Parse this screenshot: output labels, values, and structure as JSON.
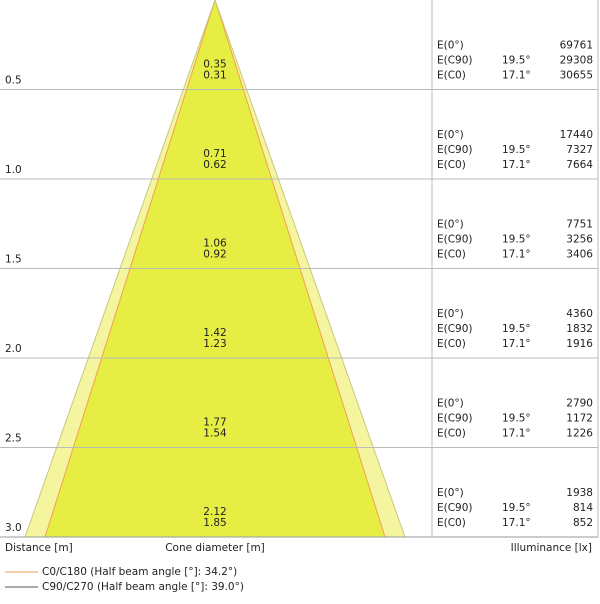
{
  "rows": [
    {
      "distance": "0.5",
      "diameters": [
        "0.35",
        "0.31"
      ],
      "illuminance": [
        [
          "E(0°)",
          "",
          "69761"
        ],
        [
          "E(C90)",
          "19.5°",
          "29308"
        ],
        [
          "E(C0)",
          "17.1°",
          "30655"
        ]
      ]
    },
    {
      "distance": "1.0",
      "diameters": [
        "0.71",
        "0.62"
      ],
      "illuminance": [
        [
          "E(0°)",
          "",
          "17440"
        ],
        [
          "E(C90)",
          "19.5°",
          "7327"
        ],
        [
          "E(C0)",
          "17.1°",
          "7664"
        ]
      ]
    },
    {
      "distance": "1.5",
      "diameters": [
        "1.06",
        "0.92"
      ],
      "illuminance": [
        [
          "E(0°)",
          "",
          "7751"
        ],
        [
          "E(C90)",
          "19.5°",
          "3256"
        ],
        [
          "E(C0)",
          "17.1°",
          "3406"
        ]
      ]
    },
    {
      "distance": "2.0",
      "diameters": [
        "1.42",
        "1.23"
      ],
      "illuminance": [
        [
          "E(0°)",
          "",
          "4360"
        ],
        [
          "E(C90)",
          "19.5°",
          "1832"
        ],
        [
          "E(C0)",
          "17.1°",
          "1916"
        ]
      ]
    },
    {
      "distance": "2.5",
      "diameters": [
        "1.77",
        "1.54"
      ],
      "illuminance": [
        [
          "E(0°)",
          "",
          "2790"
        ],
        [
          "E(C90)",
          "19.5°",
          "1172"
        ],
        [
          "E(C0)",
          "17.1°",
          "1226"
        ]
      ]
    },
    {
      "distance": "3.0",
      "diameters": [
        "2.12",
        "1.85"
      ],
      "illuminance": [
        [
          "E(0°)",
          "",
          "1938"
        ],
        [
          "E(C90)",
          "19.5°",
          "814"
        ],
        [
          "E(C0)",
          "17.1°",
          "852"
        ]
      ]
    }
  ],
  "footer": {
    "distance": "Distance [m]",
    "cone": "Cone diameter [m]",
    "illuminance": "Illuminance [lx]"
  },
  "legend": [
    "C0/C180 (Half beam angle [°]: 34.2°)",
    "C90/C270 (Half beam angle [°]: 39.0°)"
  ]
}
